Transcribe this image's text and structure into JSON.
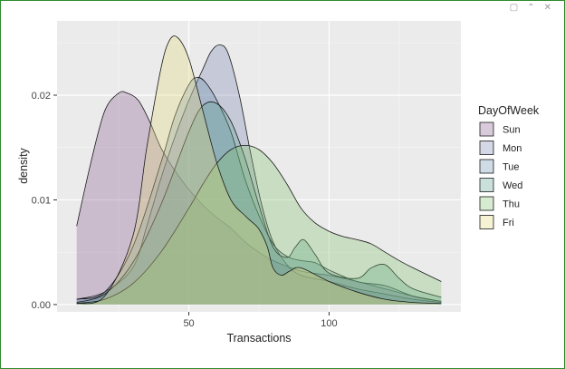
{
  "window": {
    "controls": [
      {
        "name": "restore-icon",
        "glyph": "▢"
      },
      {
        "name": "collapse-icon",
        "glyph": "⌃"
      },
      {
        "name": "close-icon",
        "glyph": "✕"
      }
    ]
  },
  "chart_data": {
    "type": "area",
    "title": "",
    "xlabel": "Transactions",
    "ylabel": "density",
    "xlim": [
      3,
      147
    ],
    "ylim": [
      -0.0007,
      0.0271
    ],
    "x_ticks": [
      50,
      100
    ],
    "y_ticks": [
      0,
      0.01,
      0.02
    ],
    "y_tick_labels": [
      "0.00",
      "0.01",
      "0.02"
    ],
    "grid": true,
    "legend": {
      "title": "DayOfWeek",
      "placement": "right",
      "entries": [
        "Sun",
        "Mon",
        "Tue",
        "Wed",
        "Thu",
        "Fri"
      ]
    },
    "series": [
      {
        "name": "Sun",
        "color": "#8a5a8e",
        "x": [
          10,
          15,
          20,
          25,
          28,
          32,
          36,
          40,
          45,
          50,
          55,
          60,
          65,
          70,
          75,
          80,
          90,
          100,
          110,
          120,
          130,
          140
        ],
        "y": [
          0.0075,
          0.0135,
          0.0185,
          0.0202,
          0.0202,
          0.0195,
          0.0175,
          0.015,
          0.0128,
          0.011,
          0.0095,
          0.0083,
          0.0073,
          0.006,
          0.005,
          0.0042,
          0.0032,
          0.0028,
          0.0022,
          0.0015,
          0.0008,
          0.0003
        ]
      },
      {
        "name": "Mon",
        "color": "#7a82b0",
        "x": [
          10,
          20,
          30,
          35,
          40,
          45,
          50,
          55,
          58,
          61,
          64,
          68,
          72,
          76,
          80,
          85,
          90,
          100,
          110,
          120,
          130,
          140
        ],
        "y": [
          0.0005,
          0.0012,
          0.0035,
          0.0075,
          0.012,
          0.016,
          0.0195,
          0.0225,
          0.0242,
          0.0248,
          0.024,
          0.02,
          0.0145,
          0.0095,
          0.006,
          0.0038,
          0.0028,
          0.0022,
          0.0015,
          0.001,
          0.0005,
          0.0002
        ]
      },
      {
        "name": "Tue",
        "color": "#6a8fae",
        "x": [
          10,
          20,
          30,
          40,
          45,
          50,
          53,
          56,
          60,
          65,
          70,
          75,
          80,
          85,
          90,
          95,
          100,
          110,
          120,
          130,
          140
        ],
        "y": [
          0.0005,
          0.0012,
          0.0055,
          0.0135,
          0.018,
          0.021,
          0.0217,
          0.0212,
          0.0195,
          0.0165,
          0.012,
          0.0085,
          0.0058,
          0.0046,
          0.0042,
          0.004,
          0.0033,
          0.0022,
          0.0018,
          0.0008,
          0.0003
        ]
      },
      {
        "name": "Wed",
        "color": "#5aa38e",
        "x": [
          10,
          20,
          30,
          40,
          50,
          55,
          60,
          65,
          70,
          75,
          80,
          85,
          88,
          91,
          95,
          100,
          110,
          115,
          120,
          125,
          130,
          140
        ],
        "y": [
          0.0002,
          0.001,
          0.004,
          0.0095,
          0.0165,
          0.019,
          0.0192,
          0.0175,
          0.014,
          0.0095,
          0.0055,
          0.0045,
          0.0055,
          0.0062,
          0.0048,
          0.003,
          0.0025,
          0.0035,
          0.0038,
          0.0025,
          0.0015,
          0.0007
        ]
      },
      {
        "name": "Thu",
        "color": "#7ec06e",
        "x": [
          10,
          20,
          30,
          40,
          50,
          55,
          60,
          65,
          70,
          75,
          80,
          85,
          90,
          95,
          100,
          105,
          110,
          115,
          120,
          125,
          130,
          140
        ],
        "y": [
          0.0001,
          0.0005,
          0.002,
          0.005,
          0.0092,
          0.0115,
          0.0135,
          0.0148,
          0.0152,
          0.0148,
          0.0135,
          0.0115,
          0.0092,
          0.0078,
          0.007,
          0.0065,
          0.0062,
          0.0058,
          0.005,
          0.0042,
          0.0035,
          0.0022
        ]
      },
      {
        "name": "Fri",
        "color": "#e3d67a",
        "x": [
          10,
          20,
          30,
          35,
          40,
          43,
          46,
          50,
          55,
          60,
          65,
          70,
          72,
          75,
          78,
          80,
          83,
          86,
          90,
          100,
          110,
          120,
          130,
          140
        ],
        "y": [
          0.0001,
          0.0008,
          0.0065,
          0.015,
          0.0225,
          0.0252,
          0.0255,
          0.0235,
          0.0185,
          0.0135,
          0.01,
          0.0085,
          0.008,
          0.0072,
          0.0055,
          0.0035,
          0.0028,
          0.0032,
          0.0035,
          0.0022,
          0.0012,
          0.0005,
          0.0002,
          0.0001
        ]
      }
    ]
  }
}
